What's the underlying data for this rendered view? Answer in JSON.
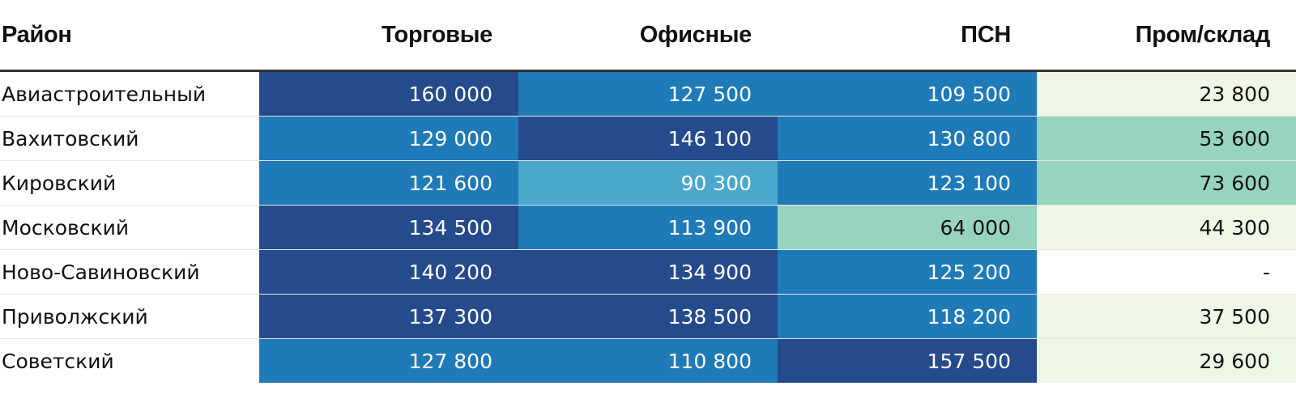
{
  "chart_data": {
    "type": "table",
    "columns": [
      "Район",
      "Торговые",
      "Офисные",
      "ПСН",
      "Пром/склад"
    ],
    "rows": [
      {
        "name": "Авиастроительный",
        "values": [
          "160 000",
          "127 500",
          "109 500",
          "23 800"
        ],
        "colors": [
          "#264b8c",
          "#1f7ab8",
          "#1f7ab8",
          "#eef7e6"
        ],
        "text_colors": [
          "#ffffff",
          "#ffffff",
          "#ffffff",
          "#111111"
        ]
      },
      {
        "name": "Вахитовский",
        "values": [
          "129 000",
          "146 100",
          "130 800",
          "53 600"
        ],
        "colors": [
          "#1f7ab8",
          "#264b8c",
          "#1f7ab8",
          "#97d4c0"
        ],
        "text_colors": [
          "#ffffff",
          "#ffffff",
          "#ffffff",
          "#111111"
        ]
      },
      {
        "name": "Кировский",
        "values": [
          "121 600",
          "90 300",
          "123 100",
          "73 600"
        ],
        "colors": [
          "#1f7ab8",
          "#4ba7cc",
          "#1f7ab8",
          "#97d4c0"
        ],
        "text_colors": [
          "#ffffff",
          "#ffffff",
          "#ffffff",
          "#111111"
        ]
      },
      {
        "name": "Московский",
        "values": [
          "134 500",
          "113 900",
          "64 000",
          "44 300"
        ],
        "colors": [
          "#264b8c",
          "#1f7ab8",
          "#97d4c0",
          "#eef7e6"
        ],
        "text_colors": [
          "#ffffff",
          "#ffffff",
          "#111111",
          "#111111"
        ]
      },
      {
        "name": "Ново-Савиновский",
        "values": [
          "140 200",
          "134 900",
          "125 200",
          "-"
        ],
        "colors": [
          "#264b8c",
          "#264b8c",
          "#1f7ab8",
          "#ffffff"
        ],
        "text_colors": [
          "#ffffff",
          "#ffffff",
          "#ffffff",
          "#111111"
        ]
      },
      {
        "name": "Приволжский",
        "values": [
          "137 300",
          "138 500",
          "118 200",
          "37 500"
        ],
        "colors": [
          "#264b8c",
          "#264b8c",
          "#1f7ab8",
          "#eef7e6"
        ],
        "text_colors": [
          "#ffffff",
          "#ffffff",
          "#ffffff",
          "#111111"
        ]
      },
      {
        "name": "Советский",
        "values": [
          "127 800",
          "110 800",
          "157 500",
          "29 600"
        ],
        "colors": [
          "#1f7ab8",
          "#1f7ab8",
          "#264b8c",
          "#eef7e6"
        ],
        "text_colors": [
          "#ffffff",
          "#ffffff",
          "#ffffff",
          "#111111"
        ]
      }
    ]
  }
}
